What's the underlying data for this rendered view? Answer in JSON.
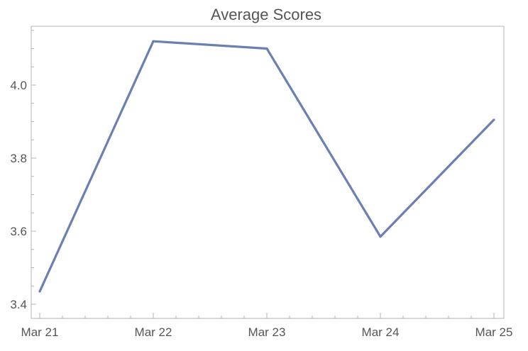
{
  "chart_data": {
    "type": "line",
    "title": "Average Scores",
    "xlabel": "",
    "ylabel": "",
    "x": [
      "Mar 21",
      "Mar 22",
      "Mar 23",
      "Mar 24",
      "Mar 25"
    ],
    "series": [
      {
        "values": [
          3.435,
          4.12,
          4.1,
          3.585,
          3.905
        ]
      }
    ],
    "ylim": [
      3.38,
      4.16
    ],
    "yticks": [
      3.4,
      3.6,
      3.8,
      4.0
    ],
    "ytick_labels": [
      "3.4",
      "3.6",
      "3.8",
      "4.0"
    ],
    "grid": false,
    "legend": "none",
    "line_color": "#6a80b3",
    "frame_color": "#b5b5b5",
    "text_color": "#555555"
  }
}
